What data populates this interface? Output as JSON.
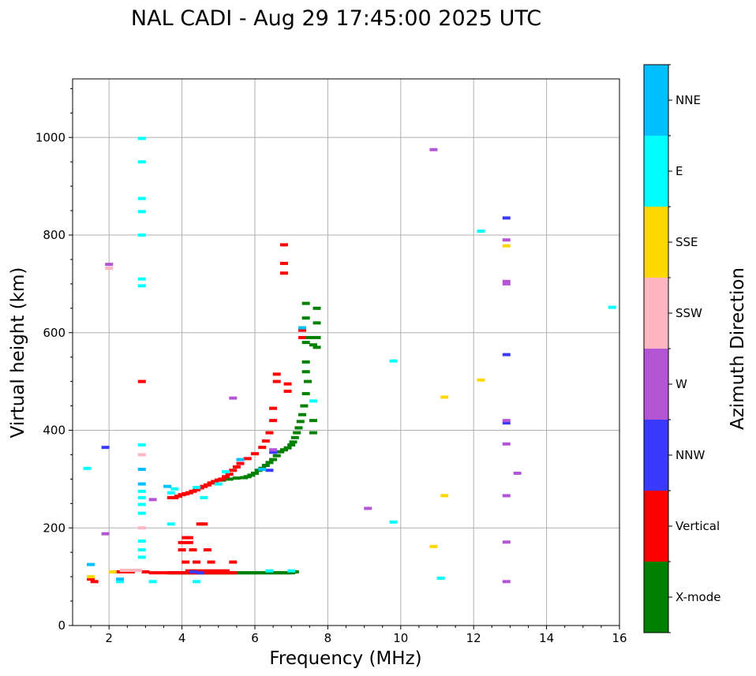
{
  "chart_data": {
    "type": "scatter",
    "title": "NAL CADI - Aug 29 17:45:00 2025 UTC",
    "xlabel": "Frequency (MHz)",
    "ylabel": "Virtual height (km)",
    "xlim": [
      1,
      16
    ],
    "ylim": [
      0,
      1120
    ],
    "xticks": [
      2,
      4,
      6,
      8,
      10,
      12,
      14,
      16
    ],
    "yticks": [
      0,
      200,
      400,
      600,
      800,
      1000
    ],
    "grid": true,
    "colorbar": {
      "label": "Azimuth Direction",
      "categories": [
        "X-mode",
        "Vertical",
        "NNW",
        "W",
        "SSW",
        "SSE",
        "E",
        "NNE"
      ],
      "colors": [
        "#008000",
        "#ff0000",
        "#3a3aff",
        "#b455d6",
        "#ffb6c1",
        "#ffd700",
        "#00ffff",
        "#00bfff"
      ]
    },
    "series": [
      {
        "name": "X-mode",
        "points": [
          [
            3.7,
            108
          ],
          [
            3.8,
            108
          ],
          [
            3.9,
            108
          ],
          [
            4.0,
            108
          ],
          [
            4.1,
            108
          ],
          [
            4.2,
            108
          ],
          [
            4.3,
            108
          ],
          [
            4.4,
            108
          ],
          [
            4.5,
            108
          ],
          [
            4.6,
            108
          ],
          [
            4.7,
            108
          ],
          [
            4.8,
            108
          ],
          [
            4.9,
            108
          ],
          [
            5.0,
            108
          ],
          [
            5.1,
            108
          ],
          [
            5.2,
            108
          ],
          [
            5.3,
            108
          ],
          [
            5.4,
            108
          ],
          [
            5.5,
            108
          ],
          [
            5.6,
            108
          ],
          [
            5.7,
            108
          ],
          [
            5.8,
            108
          ],
          [
            5.9,
            108
          ],
          [
            6.0,
            108
          ],
          [
            6.1,
            108
          ],
          [
            6.2,
            108
          ],
          [
            6.3,
            108
          ],
          [
            6.4,
            108
          ],
          [
            6.5,
            108
          ],
          [
            6.6,
            108
          ],
          [
            6.7,
            108
          ],
          [
            6.8,
            108
          ],
          [
            6.9,
            108
          ],
          [
            7.0,
            108
          ],
          [
            7.1,
            110
          ],
          [
            5.1,
            298
          ],
          [
            5.3,
            300
          ],
          [
            5.5,
            302
          ],
          [
            5.7,
            303
          ],
          [
            5.8,
            305
          ],
          [
            5.9,
            308
          ],
          [
            6.0,
            312
          ],
          [
            6.1,
            318
          ],
          [
            6.2,
            322
          ],
          [
            6.3,
            328
          ],
          [
            6.4,
            334
          ],
          [
            6.5,
            340
          ],
          [
            6.6,
            348
          ],
          [
            6.7,
            356
          ],
          [
            6.8,
            360
          ],
          [
            6.9,
            364
          ],
          [
            7.0,
            370
          ],
          [
            7.05,
            376
          ],
          [
            7.1,
            385
          ],
          [
            7.15,
            395
          ],
          [
            7.2,
            405
          ],
          [
            7.25,
            418
          ],
          [
            7.3,
            432
          ],
          [
            7.35,
            450
          ],
          [
            7.4,
            475
          ],
          [
            7.45,
            500
          ],
          [
            7.4,
            520
          ],
          [
            7.4,
            540
          ],
          [
            7.4,
            580
          ],
          [
            7.4,
            630
          ],
          [
            7.4,
            660
          ],
          [
            7.5,
            590
          ],
          [
            7.6,
            575
          ],
          [
            7.7,
            570
          ],
          [
            7.7,
            590
          ],
          [
            7.7,
            620
          ],
          [
            7.7,
            650
          ],
          [
            7.6,
            395
          ],
          [
            7.6,
            420
          ]
        ]
      },
      {
        "name": "Vertical",
        "points": [
          [
            3.2,
            108
          ],
          [
            3.4,
            108
          ],
          [
            3.6,
            108
          ],
          [
            3.7,
            108
          ],
          [
            3.8,
            108
          ],
          [
            3.9,
            108
          ],
          [
            4.0,
            108
          ],
          [
            4.1,
            108
          ],
          [
            4.2,
            108
          ],
          [
            4.3,
            108
          ],
          [
            4.4,
            108
          ],
          [
            4.5,
            108
          ],
          [
            4.6,
            108
          ],
          [
            4.7,
            108
          ],
          [
            4.8,
            108
          ],
          [
            4.9,
            108
          ],
          [
            5.0,
            108
          ],
          [
            5.1,
            108
          ],
          [
            5.2,
            108
          ],
          [
            5.3,
            108
          ],
          [
            5.4,
            108
          ],
          [
            4.2,
            112
          ],
          [
            4.4,
            112
          ],
          [
            4.6,
            112
          ],
          [
            4.8,
            112
          ],
          [
            5.0,
            112
          ],
          [
            5.2,
            112
          ],
          [
            4.1,
            130
          ],
          [
            4.4,
            130
          ],
          [
            4.8,
            130
          ],
          [
            5.4,
            130
          ],
          [
            4.0,
            155
          ],
          [
            4.3,
            155
          ],
          [
            4.7,
            155
          ],
          [
            4.0,
            170
          ],
          [
            4.2,
            170
          ],
          [
            4.1,
            180
          ],
          [
            4.2,
            180
          ],
          [
            4.5,
            208
          ],
          [
            4.6,
            208
          ],
          [
            3.7,
            262
          ],
          [
            3.8,
            262
          ],
          [
            3.9,
            265
          ],
          [
            4.0,
            268
          ],
          [
            4.1,
            270
          ],
          [
            4.2,
            272
          ],
          [
            4.3,
            275
          ],
          [
            4.4,
            278
          ],
          [
            4.5,
            282
          ],
          [
            4.6,
            285
          ],
          [
            4.7,
            288
          ],
          [
            4.8,
            292
          ],
          [
            4.9,
            295
          ],
          [
            5.0,
            298
          ],
          [
            5.1,
            300
          ],
          [
            5.2,
            305
          ],
          [
            5.3,
            310
          ],
          [
            5.4,
            318
          ],
          [
            5.5,
            325
          ],
          [
            5.6,
            332
          ],
          [
            5.8,
            342
          ],
          [
            6.0,
            352
          ],
          [
            6.2,
            365
          ],
          [
            6.3,
            378
          ],
          [
            6.4,
            395
          ],
          [
            6.5,
            420
          ],
          [
            6.5,
            445
          ],
          [
            6.6,
            500
          ],
          [
            6.6,
            515
          ],
          [
            6.9,
            495
          ],
          [
            6.9,
            480
          ],
          [
            6.8,
            722
          ],
          [
            6.8,
            742
          ],
          [
            6.8,
            780
          ],
          [
            7.3,
            590
          ],
          [
            7.3,
            605
          ],
          [
            2.9,
            500
          ],
          [
            3.0,
            110
          ],
          [
            2.2,
            110
          ],
          [
            2.6,
            110
          ],
          [
            2.4,
            110
          ],
          [
            1.5,
            95
          ],
          [
            1.6,
            90
          ]
        ]
      },
      {
        "name": "NNW",
        "points": [
          [
            1.9,
            365
          ],
          [
            6.5,
            355
          ],
          [
            6.4,
            318
          ],
          [
            12.9,
            835
          ],
          [
            12.9,
            555
          ],
          [
            12.9,
            415
          ],
          [
            4.3,
            110
          ],
          [
            4.5,
            108
          ]
        ]
      },
      {
        "name": "W",
        "points": [
          [
            5.4,
            466
          ],
          [
            9.1,
            240
          ],
          [
            10.9,
            975
          ],
          [
            12.9,
            790
          ],
          [
            12.9,
            705
          ],
          [
            12.9,
            700
          ],
          [
            12.9,
            420
          ],
          [
            12.9,
            372
          ],
          [
            12.9,
            266
          ],
          [
            12.9,
            171
          ],
          [
            12.9,
            90
          ],
          [
            13.2,
            312
          ],
          [
            1.9,
            188
          ],
          [
            2.0,
            740
          ],
          [
            3.2,
            258
          ],
          [
            6.5,
            360
          ]
        ]
      },
      {
        "name": "SSW",
        "points": [
          [
            2.0,
            732
          ],
          [
            2.9,
            200
          ],
          [
            2.9,
            350
          ],
          [
            2.6,
            113
          ],
          [
            2.8,
            113
          ],
          [
            2.4,
            113
          ]
        ]
      },
      {
        "name": "SSE",
        "points": [
          [
            10.9,
            162
          ],
          [
            11.2,
            468
          ],
          [
            11.2,
            266
          ],
          [
            12.2,
            503
          ],
          [
            12.9,
            778
          ],
          [
            1.5,
            100
          ],
          [
            2.1,
            110
          ]
        ]
      },
      {
        "name": "E",
        "points": [
          [
            2.9,
            998
          ],
          [
            2.9,
            950
          ],
          [
            2.9,
            875
          ],
          [
            2.9,
            848
          ],
          [
            2.9,
            800
          ],
          [
            2.9,
            710
          ],
          [
            2.9,
            696
          ],
          [
            2.9,
            370
          ],
          [
            2.9,
            275
          ],
          [
            2.9,
            262
          ],
          [
            2.9,
            248
          ],
          [
            2.9,
            230
          ],
          [
            2.9,
            173
          ],
          [
            2.9,
            155
          ],
          [
            2.9,
            140
          ],
          [
            3.7,
            208
          ],
          [
            3.7,
            272
          ],
          [
            3.8,
            280
          ],
          [
            4.4,
            283
          ],
          [
            4.6,
            262
          ],
          [
            5.0,
            290
          ],
          [
            5.2,
            315
          ],
          [
            7.6,
            460
          ],
          [
            9.8,
            542
          ],
          [
            9.8,
            212
          ],
          [
            11.1,
            97
          ],
          [
            12.2,
            808
          ],
          [
            15.8,
            652
          ],
          [
            1.4,
            322
          ],
          [
            2.3,
            90
          ],
          [
            3.2,
            90
          ],
          [
            4.4,
            90
          ],
          [
            6.4,
            112
          ],
          [
            7.0,
            112
          ]
        ]
      },
      {
        "name": "NNE",
        "points": [
          [
            2.9,
            320
          ],
          [
            2.9,
            290
          ],
          [
            3.6,
            285
          ],
          [
            5.6,
            340
          ],
          [
            1.5,
            125
          ],
          [
            2.3,
            95
          ],
          [
            7.3,
            610
          ],
          [
            6.2,
            320
          ]
        ]
      }
    ]
  }
}
